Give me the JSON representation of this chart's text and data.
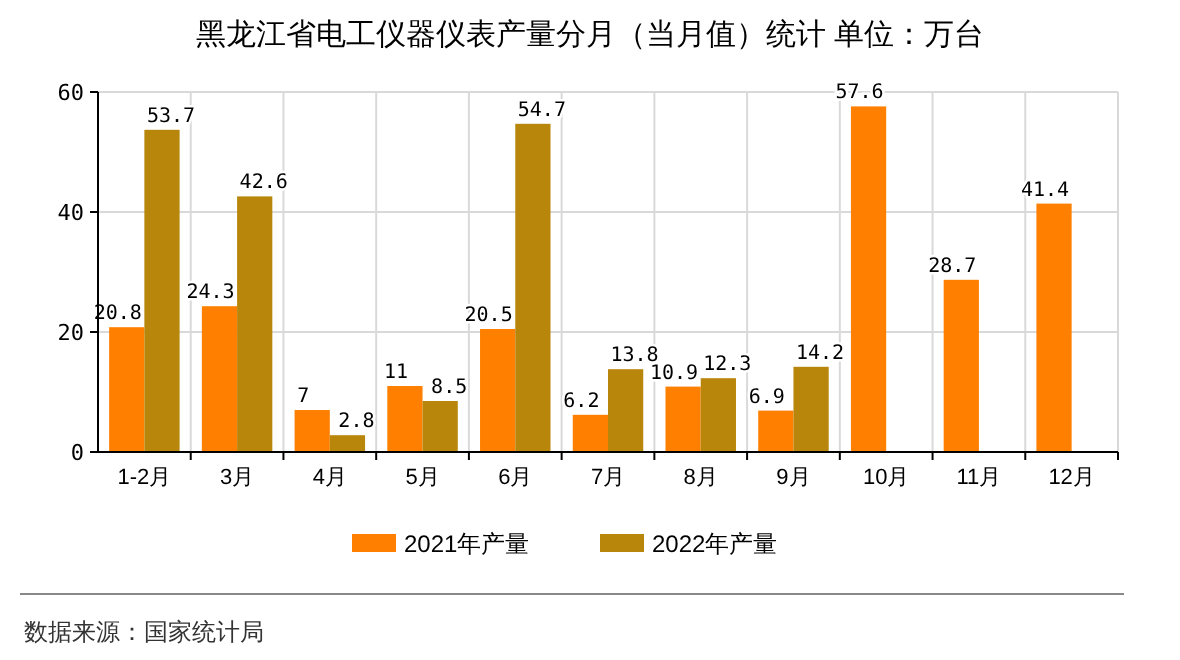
{
  "chart_data": {
    "type": "bar",
    "title": "黑龙江省电工仪器仪表产量分月（当月值）统计 单位：万台",
    "categories": [
      "1-2月",
      "3月",
      "4月",
      "5月",
      "6月",
      "7月",
      "8月",
      "9月",
      "10月",
      "11月",
      "12月"
    ],
    "series": [
      {
        "name": "2021年产量",
        "color": "#ff8000",
        "values": [
          20.8,
          24.3,
          7,
          11,
          20.5,
          6.2,
          10.9,
          6.9,
          57.6,
          28.7,
          41.4
        ]
      },
      {
        "name": "2022年产量",
        "color": "#b8860b",
        "values": [
          53.7,
          42.6,
          2.8,
          8.5,
          54.7,
          13.8,
          12.3,
          14.2,
          null,
          null,
          null
        ]
      }
    ],
    "ylim": [
      0,
      60
    ],
    "yticks": [
      0,
      20,
      40,
      60
    ],
    "grid": true,
    "legend": "bottom",
    "data_labels": true,
    "annotations": [
      "数据来源：国家统计局"
    ]
  }
}
